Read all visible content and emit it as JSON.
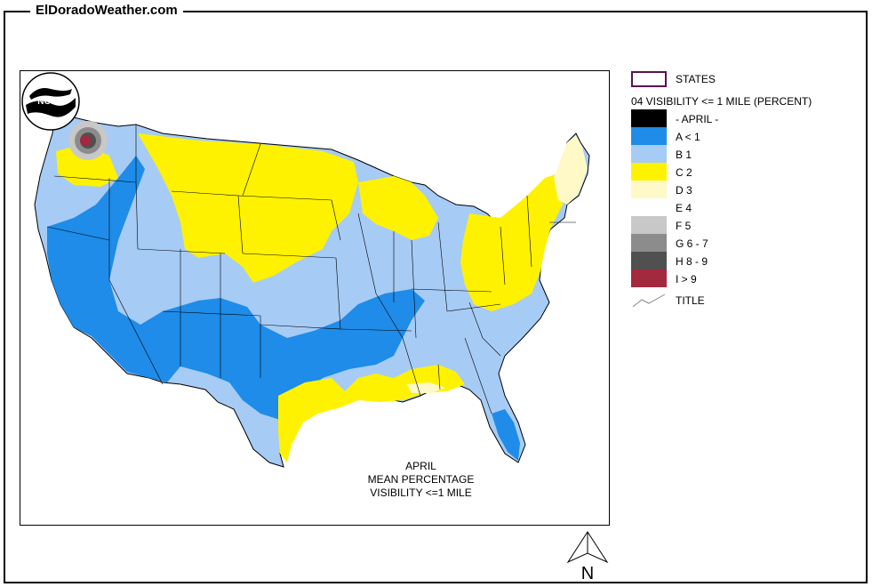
{
  "site": {
    "title": "ElDoradoWeather.com"
  },
  "caption": {
    "line1": "APRIL",
    "line2": "MEAN PERCENTAGE",
    "line3": "VISIBILITY <=1 MILE"
  },
  "logo": {
    "text": "NOAA"
  },
  "legend": {
    "states_label": "STATES",
    "heading": "04 VISIBILITY <= 1 MILE (PERCENT)",
    "items": [
      {
        "label": "- APRIL -",
        "color": "#000000"
      },
      {
        "label": "A < 1",
        "color": "#1e8ce8"
      },
      {
        "label": "B 1",
        "color": "#a6cbf5"
      },
      {
        "label": "C 2",
        "color": "#fff200"
      },
      {
        "label": "D 3",
        "color": "#fff9c7"
      },
      {
        "label": "E 4",
        "color": "#ffffff"
      },
      {
        "label": "F 5",
        "color": "#c8c8c8"
      },
      {
        "label": "G 6 - 7",
        "color": "#8c8c8c"
      },
      {
        "label": "H 8 - 9",
        "color": "#505050"
      },
      {
        "label": "I > 9",
        "color": "#a3293f"
      }
    ],
    "title_label": "TITLE"
  },
  "north_arrow": {
    "label": "N"
  },
  "colors": {
    "state_border": "#5a1050",
    "ocean": "#ffffff"
  }
}
